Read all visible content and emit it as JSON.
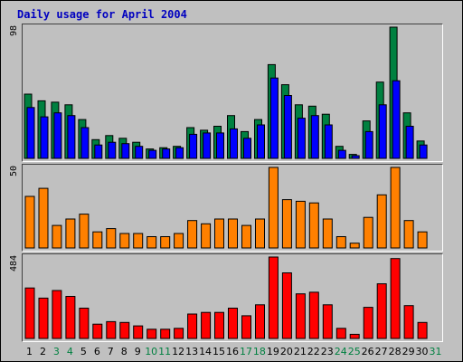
{
  "chart_data": {
    "type": "bar",
    "title": "Daily usage for April 2004",
    "categories": [
      "1",
      "2",
      "3",
      "4",
      "5",
      "6",
      "7",
      "8",
      "9",
      "10",
      "11",
      "12",
      "13",
      "14",
      "15",
      "16",
      "17",
      "18",
      "19",
      "20",
      "21",
      "22",
      "23",
      "24",
      "25",
      "26",
      "27",
      "28",
      "29",
      "30",
      "31"
    ],
    "weekend_days": [
      "3",
      "4",
      "10",
      "11",
      "17",
      "18",
      "24",
      "25",
      "31"
    ],
    "colors": {
      "weekday_label": "#000000",
      "weekend_label": "#008040",
      "hits": "#008040",
      "files": "#0000ff",
      "pages": "#ff8000",
      "kbytes": "#ff0000",
      "background": "#c0c0c0",
      "title": "#0000c0"
    },
    "panels": [
      {
        "id": "visits",
        "max_label": "98",
        "ylim": [
          0,
          98
        ],
        "series": [
          {
            "values": [
              48,
              43,
              42,
              40,
              29,
              14,
              17,
              15,
              12,
              7,
              8,
              9,
              23,
              21,
              24,
              32,
              20,
              29,
              70,
              55,
              40,
              39,
              33,
              9,
              3,
              28,
              57,
              98,
              34,
              13,
              null
            ]
          },
          {
            "values": [
              38,
              31,
              34,
              32,
              23,
              10,
              12,
              11,
              9,
              6,
              7,
              8,
              18,
              19,
              19,
              22,
              15,
              25,
              60,
              47,
              30,
              32,
              25,
              6,
              2,
              20,
              40,
              58,
              24,
              10,
              null
            ]
          }
        ]
      },
      {
        "id": "pages",
        "max_label": "50",
        "ylim": [
          0,
          50
        ],
        "series": [
          {
            "values": [
              32,
              37,
              14,
              18,
              21,
              10,
              12,
              9,
              9,
              7,
              7,
              9,
              17,
              15,
              18,
              18,
              14,
              18,
              50,
              30,
              29,
              28,
              18,
              7,
              3,
              19,
              33,
              50,
              17,
              10,
              null
            ]
          }
        ]
      },
      {
        "id": "kbytes",
        "max_label": "484",
        "ylim": [
          0,
          484
        ],
        "series": [
          {
            "values": [
              300,
              240,
              285,
              250,
              180,
              85,
              100,
              95,
              75,
              55,
              55,
              60,
              145,
              155,
              155,
              180,
              135,
              200,
              484,
              390,
              265,
              275,
              200,
              60,
              25,
              185,
              325,
              475,
              195,
              95,
              null
            ]
          }
        ]
      }
    ]
  }
}
